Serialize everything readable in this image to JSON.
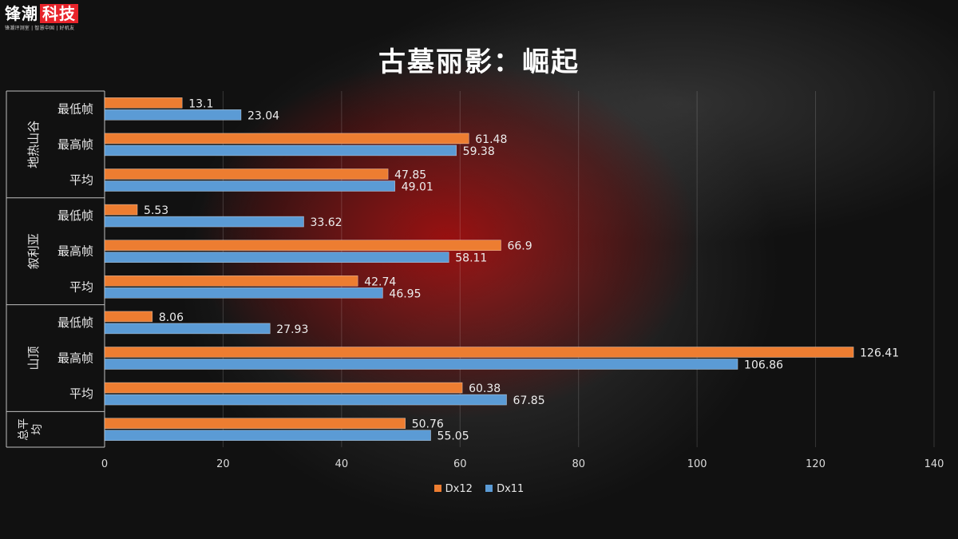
{
  "logo": {
    "main_left": "锋潮",
    "main_right": "科技",
    "sub": "锋潮评测室 | 智慧中国 | 好机友"
  },
  "colors": {
    "dx12": "#ed7d31",
    "dx11": "#5b9bd5"
  },
  "chart_data": {
    "type": "bar",
    "orientation": "horizontal",
    "title": "古墓丽影：崛起",
    "xlim": [
      0,
      140
    ],
    "xticks": [
      0,
      20,
      40,
      60,
      80,
      100,
      120,
      140
    ],
    "grid": true,
    "legend_position": "bottom",
    "groups": [
      {
        "name": "地热山谷",
        "categories": [
          "最低帧",
          "最高帧",
          "平均"
        ]
      },
      {
        "name": "叙利亚",
        "categories": [
          "最低帧",
          "最高帧",
          "平均"
        ]
      },
      {
        "name": "山顶",
        "categories": [
          "最低帧",
          "最高帧",
          "平均"
        ]
      },
      {
        "name": "总平均",
        "categories": [
          ""
        ]
      }
    ],
    "series": [
      {
        "name": "Dx12",
        "values": [
          13.1,
          61.48,
          47.85,
          5.53,
          66.9,
          42.74,
          8.06,
          126.41,
          60.38,
          50.76
        ]
      },
      {
        "name": "Dx11",
        "values": [
          23.04,
          59.38,
          49.01,
          33.62,
          58.11,
          46.95,
          27.93,
          106.86,
          67.85,
          55.05
        ]
      }
    ]
  }
}
